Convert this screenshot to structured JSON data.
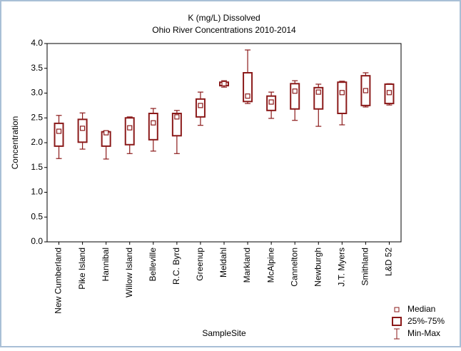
{
  "chart_data": {
    "type": "box",
    "title": "K (mg/L) Dissolved",
    "subtitle": "Ohio River Concentrations 2010-2014",
    "y_label": "Concentration",
    "x_label": "SampleSite",
    "categories": [
      "New Cumberland",
      "Pike Island",
      "Hannibal",
      "Willow Island",
      "Belleville",
      "R.C. Byrd",
      "Greenup",
      "Meldahl",
      "Markland",
      "McAlpine",
      "Cannelton",
      "Newburgh",
      "J.T. Myers",
      "Smithland",
      "L&D 52"
    ],
    "min": [
      1.68,
      1.87,
      1.67,
      1.78,
      1.83,
      1.78,
      2.35,
      3.12,
      2.79,
      2.49,
      2.45,
      2.33,
      2.36,
      2.72,
      2.76
    ],
    "q1": [
      1.93,
      2.01,
      1.93,
      1.96,
      2.06,
      2.14,
      2.52,
      3.15,
      2.83,
      2.65,
      2.68,
      2.68,
      2.59,
      2.75,
      2.79
    ],
    "median": [
      2.23,
      2.29,
      2.2,
      2.3,
      2.4,
      2.52,
      2.75,
      3.19,
      2.94,
      2.82,
      3.04,
      3.02,
      3.01,
      3.05,
      3.01
    ],
    "q3": [
      2.39,
      2.47,
      2.22,
      2.5,
      2.59,
      2.59,
      2.88,
      3.22,
      3.41,
      2.94,
      3.19,
      3.11,
      3.22,
      3.35,
      3.18
    ],
    "max": [
      2.55,
      2.6,
      2.24,
      2.52,
      2.69,
      2.65,
      3.02,
      3.25,
      3.87,
      3.02,
      3.25,
      3.18,
      3.24,
      3.41,
      3.19
    ],
    "color": "#8b1a1a",
    "ylim": [
      0,
      4
    ],
    "yticks": [
      {
        "value": 0,
        "label": "0.0"
      },
      {
        "value": 0.5,
        "label": "0.5"
      },
      {
        "value": 1,
        "label": "1.0"
      },
      {
        "value": 1.5,
        "label": "1.5"
      },
      {
        "value": 2,
        "label": "2.0"
      },
      {
        "value": 2.5,
        "label": "2.5"
      },
      {
        "value": 3,
        "label": "3.0"
      },
      {
        "value": 3.5,
        "label": "3.5"
      },
      {
        "value": 4,
        "label": "4.0"
      }
    ],
    "legend": [
      "Median",
      "25%-75%",
      "Min-Max"
    ]
  }
}
